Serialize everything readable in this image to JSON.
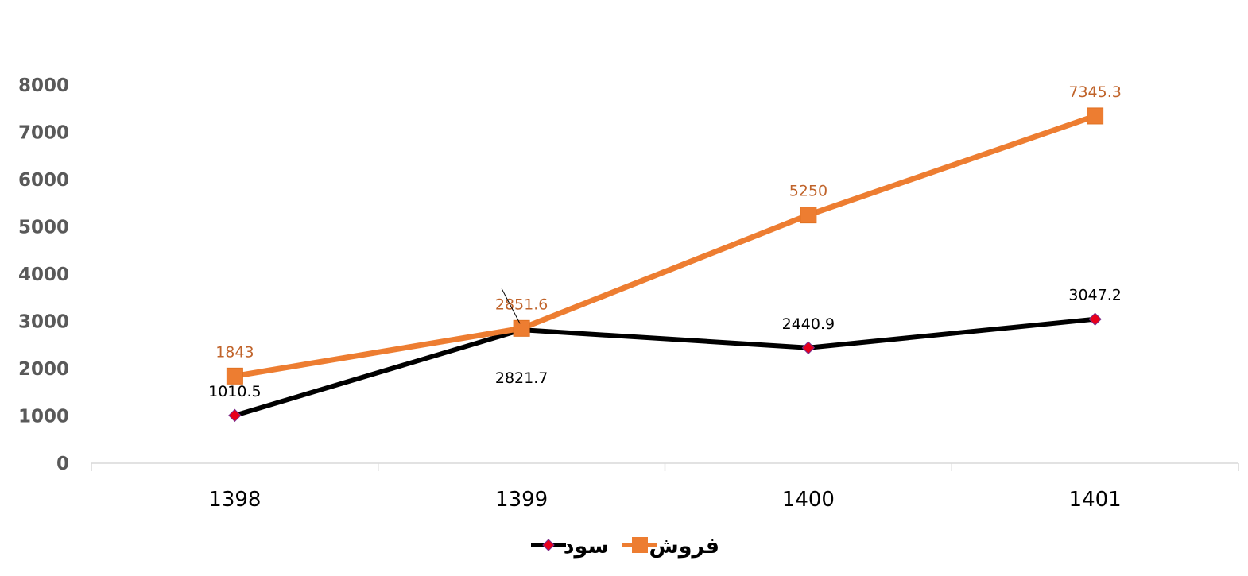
{
  "colors": {
    "forush": "#ED7D31",
    "sood_line": "#000000",
    "sood_marker": "#E8001C",
    "axis": "#D9D9D9",
    "ytick": "#595959",
    "forush_label": "#C0632A"
  },
  "chart_data": {
    "type": "line",
    "categories": [
      "1398",
      "1399",
      "1400",
      "1401"
    ],
    "ylim": [
      0,
      8000
    ],
    "yticks": [
      "0",
      "1000",
      "2000",
      "3000",
      "4000",
      "5000",
      "6000",
      "7000",
      "8000"
    ],
    "grid": false,
    "legend_position": "bottom",
    "series": [
      {
        "name": "فروش",
        "marker": "square",
        "values": [
          1843,
          2851.6,
          5250,
          7345.3
        ],
        "labels": [
          "1843",
          "2851.6",
          "5250",
          "7345.3"
        ]
      },
      {
        "name": "سود",
        "marker": "diamond",
        "values": [
          1010.5,
          2821.7,
          2440.9,
          3047.2
        ],
        "labels": [
          "1010.5",
          "2821.7",
          "2440.9",
          "3047.2"
        ]
      }
    ]
  }
}
